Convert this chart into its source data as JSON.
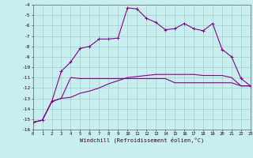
{
  "x": [
    0,
    1,
    2,
    3,
    4,
    5,
    6,
    7,
    8,
    9,
    10,
    11,
    12,
    13,
    14,
    15,
    16,
    17,
    18,
    19,
    20,
    21,
    22,
    23
  ],
  "line1": [
    -15.3,
    -15.1,
    -13.3,
    -10.4,
    -9.5,
    -8.2,
    -8.0,
    -7.3,
    -7.3,
    -7.2,
    -4.3,
    -4.4,
    -5.3,
    -5.7,
    -6.4,
    -6.3,
    -5.8,
    -6.3,
    -6.5,
    -5.8,
    -8.3,
    -9.0,
    -11.1,
    -11.8
  ],
  "line2": [
    -15.3,
    -15.1,
    -13.3,
    -13.0,
    -11.0,
    -11.1,
    -11.1,
    -11.1,
    -11.1,
    -11.1,
    -11.1,
    -11.1,
    -11.1,
    -11.1,
    -11.1,
    -11.5,
    -11.5,
    -11.5,
    -11.5,
    -11.5,
    -11.5,
    -11.5,
    -11.8,
    -11.8
  ],
  "line3": [
    -15.3,
    -15.1,
    -13.3,
    -13.0,
    -12.9,
    -12.5,
    -12.3,
    -12.0,
    -11.6,
    -11.3,
    -11.0,
    -10.9,
    -10.8,
    -10.7,
    -10.7,
    -10.7,
    -10.7,
    -10.7,
    -10.8,
    -10.8,
    -10.8,
    -11.0,
    -11.8,
    -11.8
  ],
  "bg_color": "#c8eef0",
  "grid_color": "#a0d0c8",
  "line_color": "#880088",
  "xlabel": "Windchill (Refroidissement éolien,°C)",
  "ylim": [
    -16,
    -4
  ],
  "xlim": [
    0,
    23
  ],
  "yticks": [
    -16,
    -15,
    -14,
    -13,
    -12,
    -11,
    -10,
    -9,
    -8,
    -7,
    -6,
    -5,
    -4
  ],
  "xticks": [
    0,
    1,
    2,
    3,
    4,
    5,
    6,
    7,
    8,
    9,
    10,
    11,
    12,
    13,
    14,
    15,
    16,
    17,
    18,
    19,
    20,
    21,
    22,
    23
  ]
}
